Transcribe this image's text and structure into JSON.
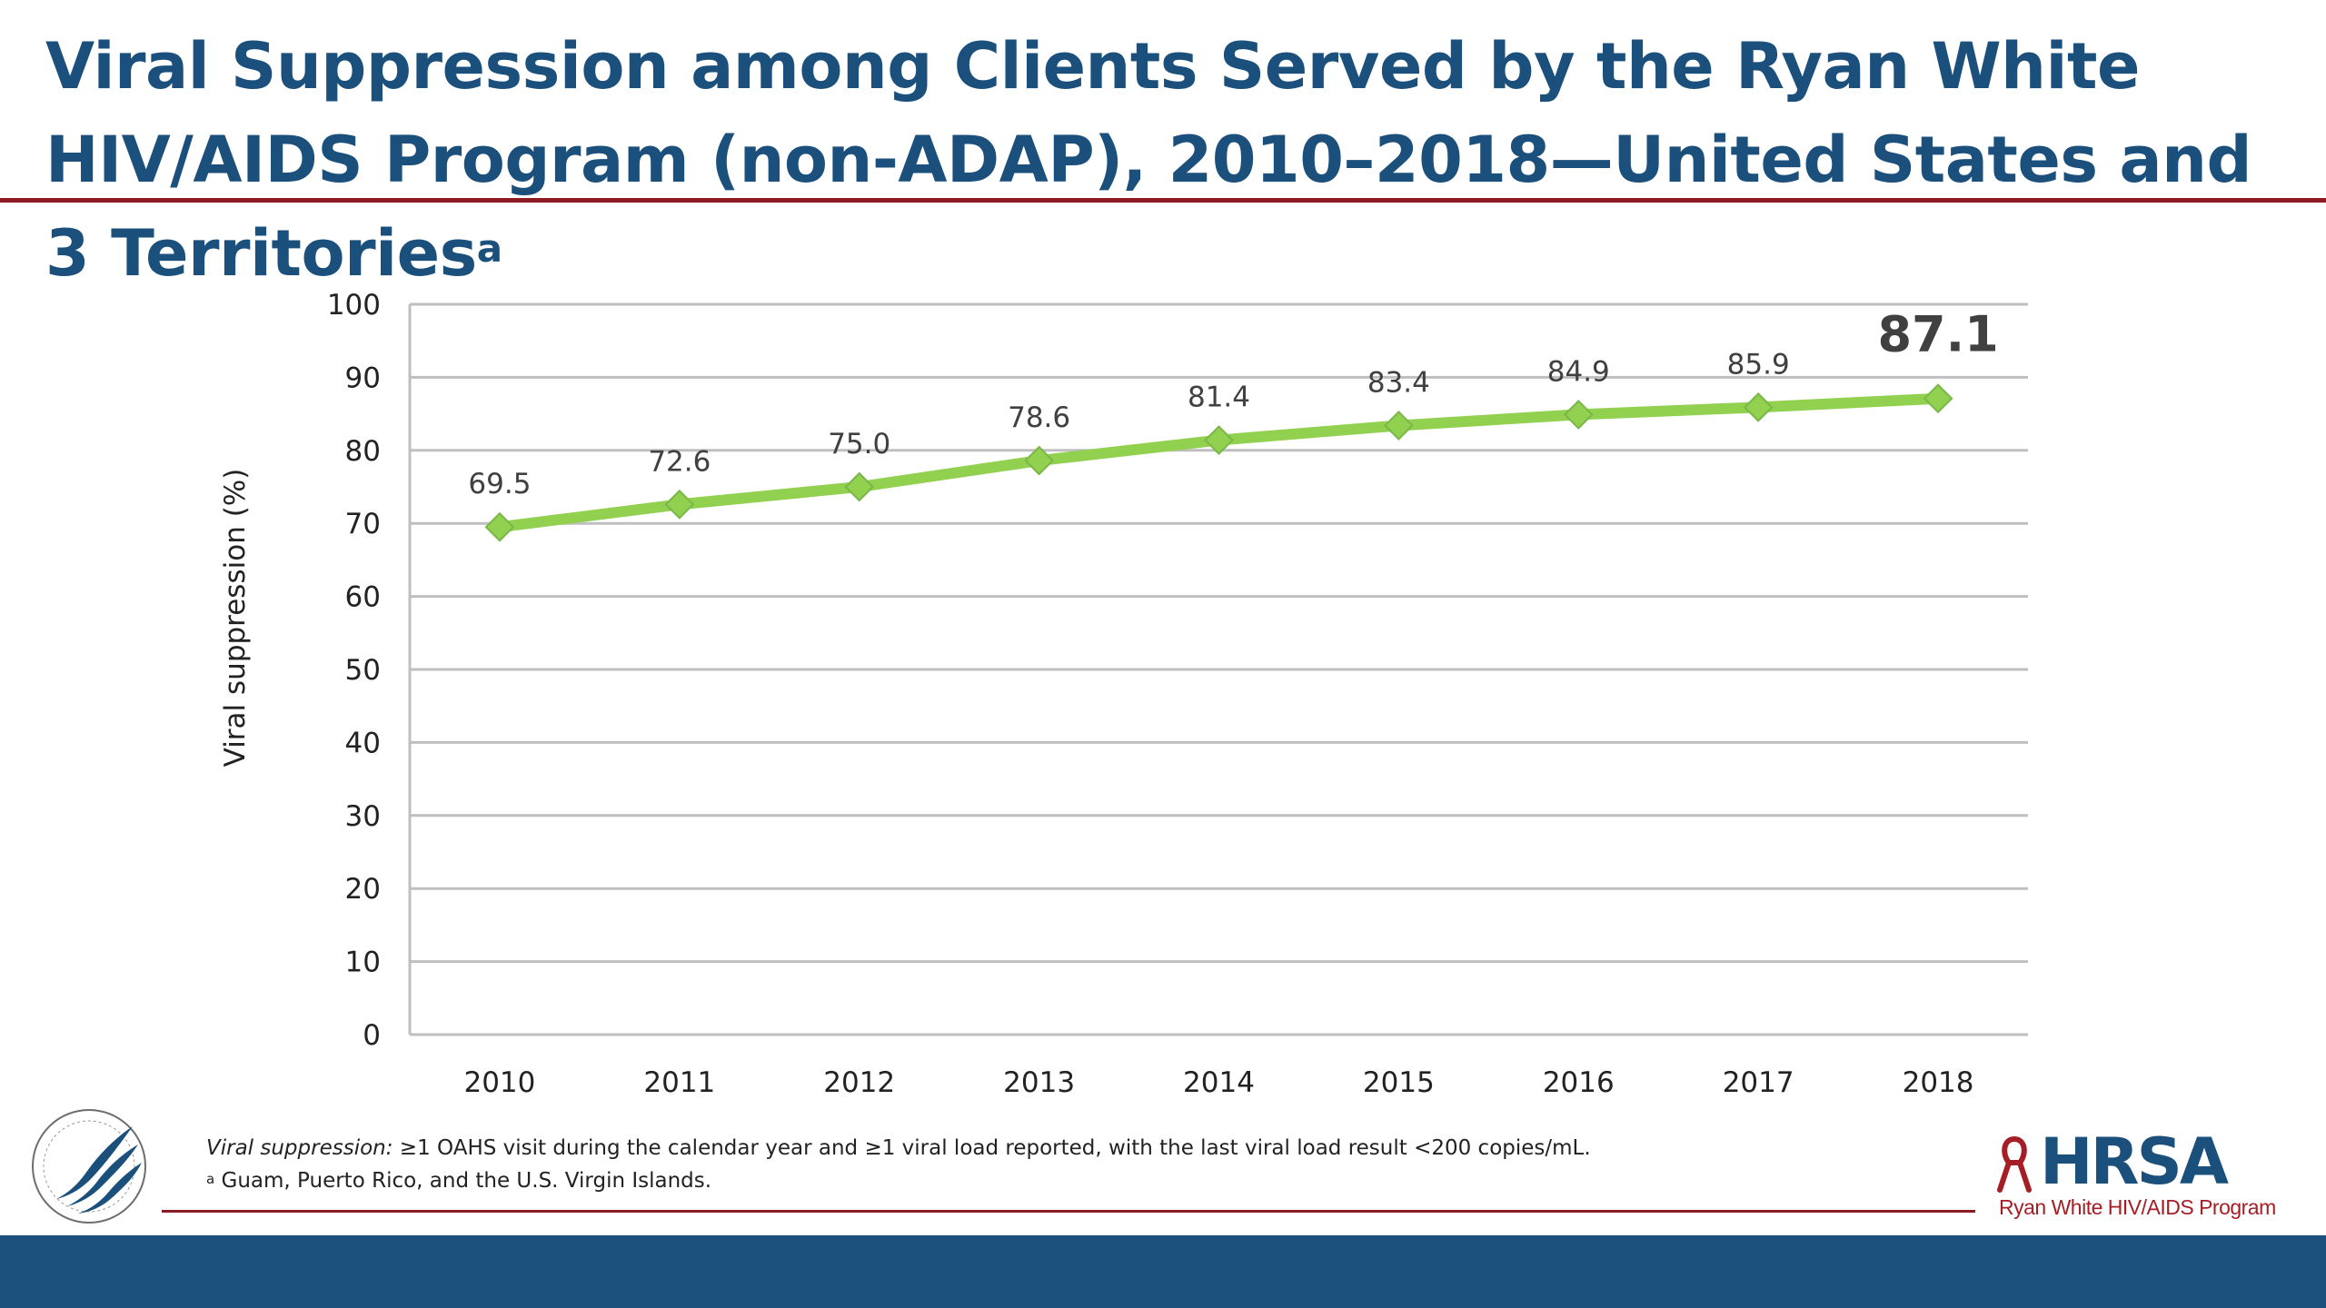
{
  "slide": {
    "title_text": "Viral Suppression among Clients Served by the Ryan White HIV/AIDS Program (non-ADAP), 2010–2018—United States and 3 Territories",
    "title_superscript": "a"
  },
  "footnotes": {
    "definition_term": "Viral suppression:",
    "definition_text": " ≥1 OAHS visit during the calendar year and ≥1 viral load reported, with the last viral load result <200 copies/mL.",
    "territories_marker": "a",
    "territories_text": " Guam, Puerto Rico, and the U.S. Virgin Islands."
  },
  "logos": {
    "left_icon": "hhs-seal-icon",
    "right_wordmark": "HRSA",
    "right_tagline": "Ryan White HIV/AIDS Program"
  },
  "colors": {
    "title": "#1b4f7c",
    "rule": "#8e1a22",
    "footer_bar": "#1b4f7c",
    "series_line": "#92d050",
    "grid": "#bfbfbf"
  },
  "chart_data": {
    "type": "line",
    "title": "",
    "xlabel": "",
    "ylabel": "Viral suppression (%)",
    "ylim": [
      0,
      100
    ],
    "yticks": [
      0,
      10,
      20,
      30,
      40,
      50,
      60,
      70,
      80,
      90,
      100
    ],
    "grid": true,
    "legend": "none",
    "categories": [
      "2010",
      "2011",
      "2012",
      "2013",
      "2014",
      "2015",
      "2016",
      "2017",
      "2018"
    ],
    "series": [
      {
        "name": "",
        "values": [
          69.5,
          72.6,
          75.0,
          78.6,
          81.4,
          83.4,
          84.9,
          85.9,
          87.1
        ],
        "labels": [
          "69.5",
          "72.6",
          "75.0",
          "78.6",
          "81.4",
          "83.4",
          "84.9",
          "85.9",
          "87.1"
        ],
        "marker": "diamond"
      }
    ],
    "emphasized_label": "87.1"
  }
}
